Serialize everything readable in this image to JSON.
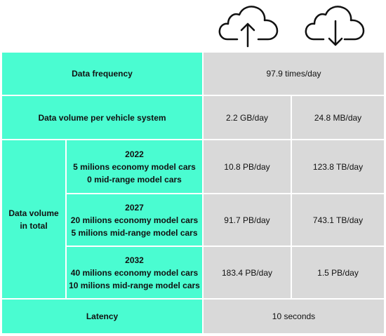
{
  "table": {
    "frequency": {
      "label": "Data frequency",
      "value": "97.9 times/day"
    },
    "per_vehicle": {
      "label": "Data volume per vehicle system",
      "values": [
        "2.2 GB/day",
        "24.8 MB/day"
      ]
    },
    "total": {
      "label": "Data volume in total",
      "periods": [
        {
          "year": "2022",
          "lines": [
            "5 milions economy model cars",
            "0 mid-range model cars"
          ],
          "values": [
            "10.8 PB/day",
            "123.8 TB/day"
          ]
        },
        {
          "year": "2027",
          "lines": [
            "20 milions economy model cars",
            "5 milions mid-range model cars"
          ],
          "values": [
            "91.7 PB/day",
            "743.1 TB/day"
          ]
        },
        {
          "year": "2032",
          "lines": [
            "40 milions economy model cars",
            "10 milions mid-range model cars"
          ],
          "values": [
            "183.4 PB/day",
            "1.5 PB/day"
          ]
        }
      ]
    },
    "latency": {
      "label": "Latency",
      "value": "10 seconds"
    }
  }
}
